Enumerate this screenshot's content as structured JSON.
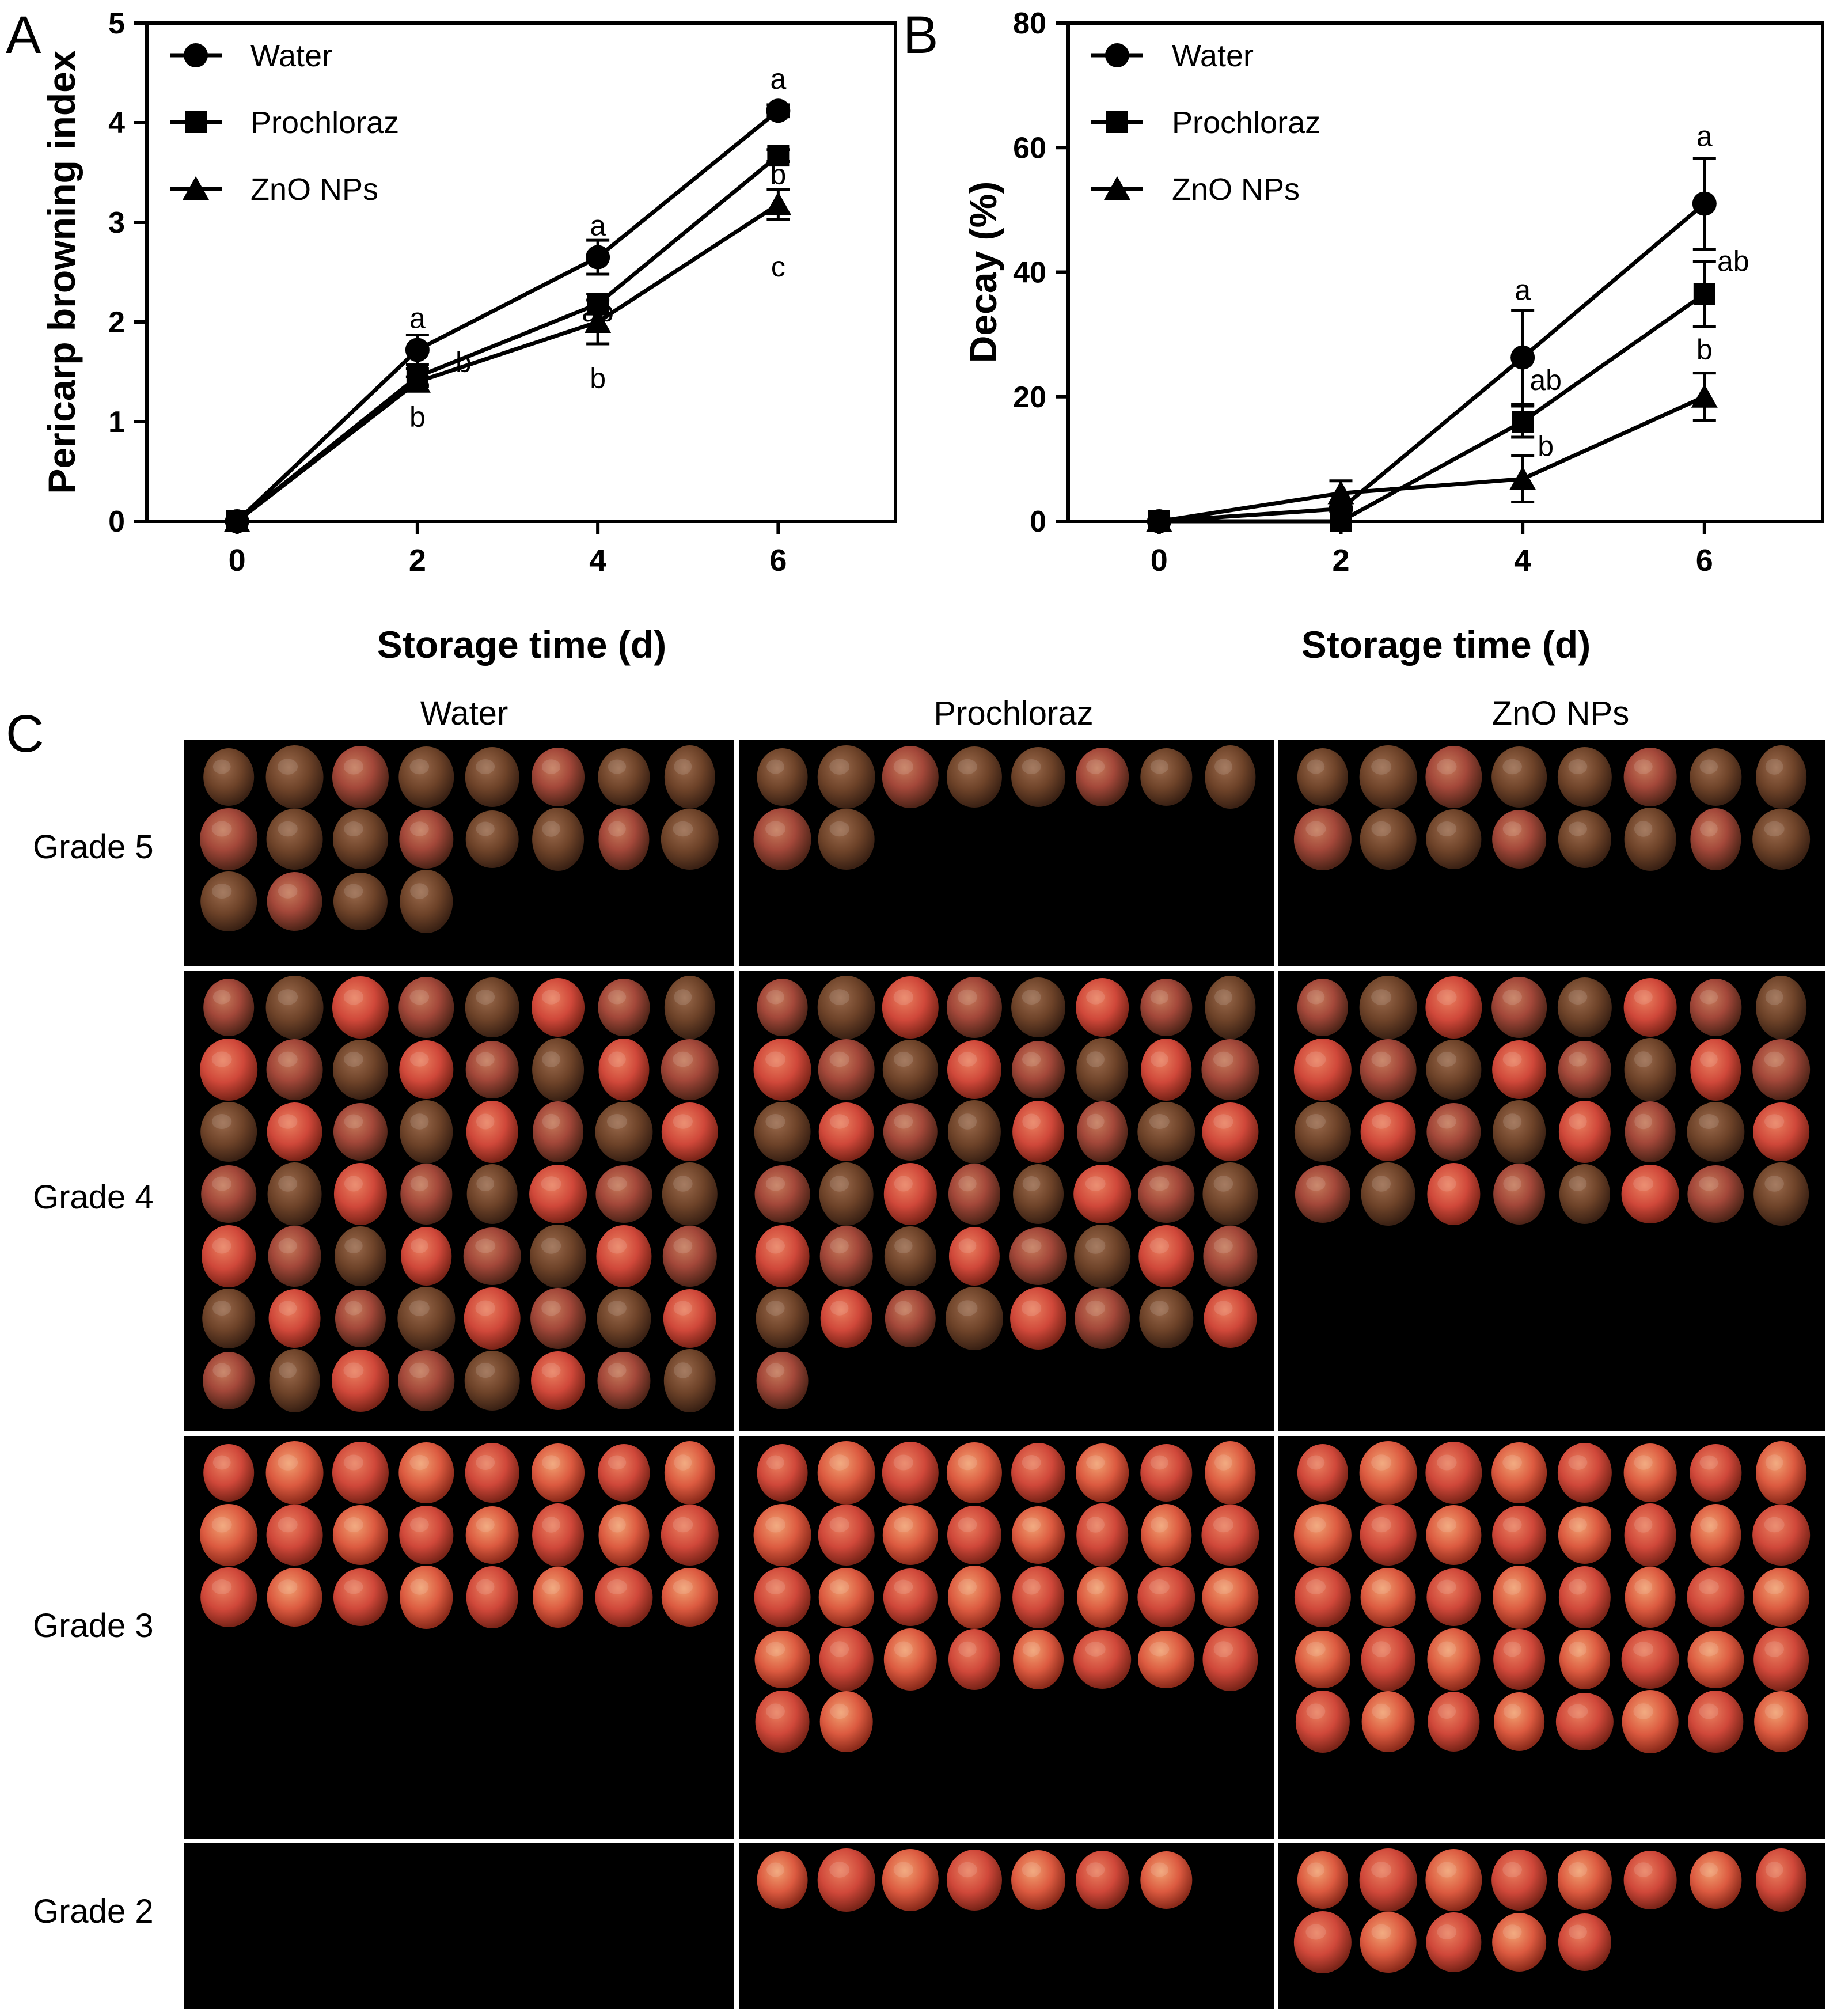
{
  "chart_data": [
    {
      "panel_label": "A",
      "type": "line",
      "xlabel": "Storage time (d)",
      "ylabel": "Pericarp browning index",
      "x": [
        0,
        2,
        4,
        6
      ],
      "xticks": [
        "0",
        "2",
        "4",
        "6"
      ],
      "yticks": [
        "0",
        "1",
        "2",
        "3",
        "4",
        "5"
      ],
      "xlim": [
        -1,
        7.3
      ],
      "ylim": [
        0,
        5
      ],
      "legend": "top-left",
      "series": [
        {
          "name": "Water",
          "marker": "circle",
          "values": [
            0,
            1.72,
            2.65,
            4.12
          ],
          "err": [
            0,
            0.15,
            0.17,
            0.06
          ],
          "letters": [
            "",
            "a",
            "a",
            "a"
          ]
        },
        {
          "name": "Prochloraz",
          "marker": "square",
          "values": [
            0,
            1.45,
            2.18,
            3.67
          ],
          "err": [
            0,
            0.08,
            0.1,
            0.06
          ],
          "letters": [
            "",
            "b",
            "ab",
            "b"
          ]
        },
        {
          "name": "ZnO NPs",
          "marker": "triangle",
          "values": [
            0,
            1.4,
            2.0,
            3.18
          ],
          "err": [
            0,
            0.05,
            0.22,
            0.15
          ],
          "letters": [
            "",
            "b",
            "b",
            "c"
          ]
        }
      ]
    },
    {
      "panel_label": "B",
      "type": "line",
      "xlabel": "Storage time (d)",
      "ylabel": "Decay (%)",
      "x": [
        0,
        2,
        4,
        6
      ],
      "xticks": [
        "0",
        "2",
        "4",
        "6"
      ],
      "yticks": [
        "0",
        "20",
        "40",
        "60",
        "80"
      ],
      "xlim": [
        -1,
        7.3
      ],
      "ylim": [
        0,
        80
      ],
      "legend": "top-left",
      "series": [
        {
          "name": "Water",
          "marker": "circle",
          "values": [
            0,
            2,
            26.3,
            51.0
          ],
          "err": [
            0,
            0,
            7.5,
            7.3
          ],
          "letters": [
            "",
            "",
            "a",
            "a"
          ]
        },
        {
          "name": "Prochloraz",
          "marker": "square",
          "values": [
            0,
            0,
            16.0,
            36.5
          ],
          "err": [
            0,
            0,
            2.5,
            5.2
          ],
          "letters": [
            "",
            "",
            "ab",
            "ab"
          ]
        },
        {
          "name": "ZnO NPs",
          "marker": "triangle",
          "values": [
            0,
            4.5,
            6.8,
            20.0
          ],
          "err": [
            0,
            2.0,
            3.7,
            3.8
          ],
          "letters": [
            "",
            "",
            "b",
            "b"
          ]
        }
      ]
    }
  ],
  "photo_panel": {
    "panel_label": "C",
    "columns": [
      "Water",
      "Prochloraz",
      "ZnO NPs"
    ],
    "rows": [
      {
        "grade": "Grade 5",
        "counts": [
          20,
          10,
          16
        ]
      },
      {
        "grade": "Grade 4",
        "counts": [
          56,
          49,
          32
        ]
      },
      {
        "grade": "Grade 3",
        "counts": [
          24,
          34,
          40
        ]
      },
      {
        "grade": "Grade 2",
        "counts": [
          0,
          7,
          13
        ]
      }
    ]
  },
  "colors": {
    "line": "#000000",
    "photo_bg": "#000000",
    "divider": "#ffffff"
  }
}
